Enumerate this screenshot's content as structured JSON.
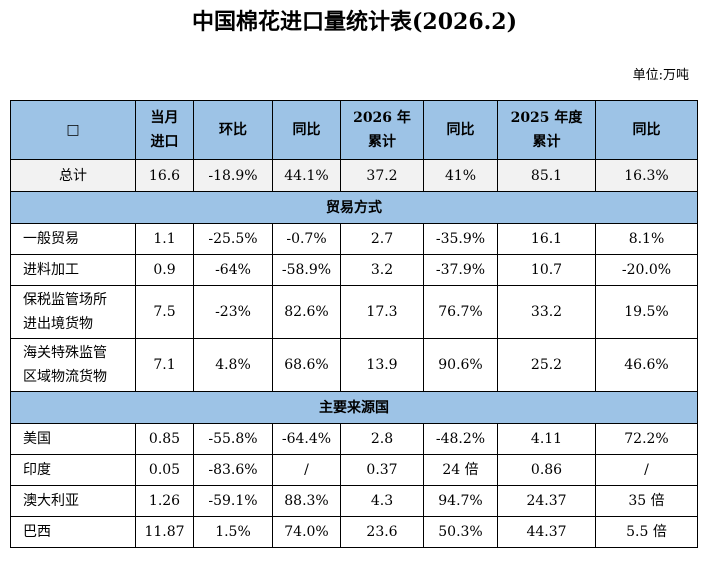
{
  "header": {
    "title": "中国棉花进口量统计表(2026.2)",
    "unit": "单位:万吨"
  },
  "table": {
    "columns": [
      "□",
      "当月\n进口",
      "环比",
      "同比",
      "2026 年\n累计",
      "同比",
      "2025 年度\n累计",
      "同比"
    ],
    "rows": [
      [
        "总计",
        "16.6",
        "-18.9%",
        "44.1%",
        "37.2",
        "41%",
        "85.1",
        "16.3%"
      ],
      {
        "section": "贸易方式"
      },
      [
        "一般贸易",
        "1.1",
        "-25.5%",
        "-0.7%",
        "2.7",
        "-35.9%",
        "16.1",
        "8.1%"
      ],
      [
        "进料加工",
        "0.9",
        "-64%",
        "-58.9%",
        "3.2",
        "-37.9%",
        "10.7",
        "-20.0%"
      ],
      [
        "保税监管场所\n进出境货物",
        "7.5",
        "-23%",
        "82.6%",
        "17.3",
        "76.7%",
        "33.2",
        "19.5%"
      ],
      [
        "海关特殊监管\n区域物流货物",
        "7.1",
        "4.8%",
        "68.6%",
        "13.9",
        "90.6%",
        "25.2",
        "46.6%"
      ],
      {
        "section": "主要来源国"
      },
      [
        "美国",
        "0.85",
        "-55.8%",
        "-64.4%",
        "2.8",
        "-48.2%",
        "4.11",
        "72.2%"
      ],
      [
        "印度",
        "0.05",
        "-83.6%",
        "/",
        "0.37",
        "24 倍",
        "0.86",
        "/"
      ],
      [
        "澳大利亚",
        "1.26",
        "-59.1%",
        "88.3%",
        "4.3",
        "94.7%",
        "24.37",
        "35 倍"
      ],
      [
        "巴西",
        "11.87",
        "1.5%",
        "74.0%",
        "23.6",
        "50.3%",
        "44.37",
        "5.5 倍"
      ]
    ]
  }
}
